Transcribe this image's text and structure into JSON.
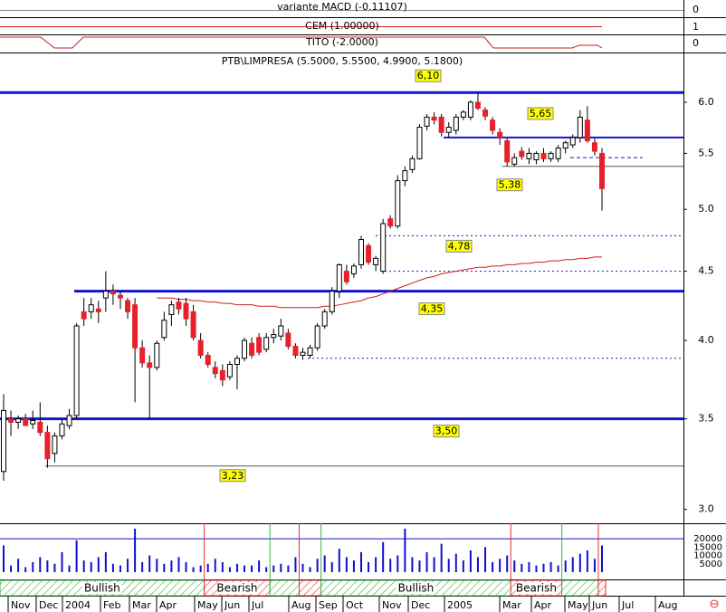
{
  "chart_data": {
    "type": "candlestick",
    "title": "PTB\\LIMPRESA (5.5000, 5.5500, 4.9900, 5.1800)",
    "log_scale": true,
    "ylim": [
      2.93,
      6.49
    ],
    "yticks": [
      {
        "value": 3,
        "label": "3.0"
      },
      3.5,
      {
        "value": 4,
        "label": "4.0"
      },
      4.5,
      {
        "value": 5,
        "label": "5.0"
      },
      5.5,
      {
        "value": 6,
        "label": "6.0"
      }
    ],
    "up_color": "#ffffff",
    "down_color": "#e8202a",
    "ma_color": "#cc1f1f",
    "ohlc": [
      [
        3.2,
        3.65,
        3.15,
        3.55
      ],
      [
        3.5,
        3.55,
        3.4,
        3.48
      ],
      [
        3.48,
        3.52,
        3.44,
        3.5
      ],
      [
        3.5,
        3.53,
        3.46,
        3.46
      ],
      [
        3.47,
        3.55,
        3.44,
        3.49
      ],
      [
        3.48,
        3.6,
        3.4,
        3.42
      ],
      [
        3.42,
        3.46,
        3.22,
        3.27
      ],
      [
        3.3,
        3.42,
        3.25,
        3.4
      ],
      [
        3.4,
        3.5,
        3.38,
        3.47
      ],
      [
        3.46,
        3.56,
        3.44,
        3.52
      ],
      [
        3.52,
        4.12,
        3.5,
        4.1
      ],
      [
        4.2,
        4.3,
        4.1,
        4.15
      ],
      [
        4.2,
        4.3,
        4.15,
        4.25
      ],
      [
        4.22,
        4.28,
        4.12,
        4.2
      ],
      [
        4.3,
        4.5,
        4.2,
        4.35
      ],
      [
        4.35,
        4.4,
        4.25,
        4.33
      ],
      [
        4.32,
        4.35,
        4.22,
        4.3
      ],
      [
        4.28,
        4.3,
        4.15,
        4.2
      ],
      [
        4.25,
        4.3,
        3.6,
        3.95
      ],
      [
        3.95,
        4.0,
        3.82,
        3.85
      ],
      [
        3.85,
        3.9,
        3.5,
        3.82
      ],
      [
        3.82,
        4.0,
        3.8,
        3.98
      ],
      [
        4.02,
        4.2,
        4.0,
        4.14
      ],
      [
        4.18,
        4.28,
        4.1,
        4.25
      ],
      [
        4.27,
        4.3,
        4.18,
        4.22
      ],
      [
        4.26,
        4.3,
        4.1,
        4.15
      ],
      [
        4.2,
        4.25,
        4.0,
        4.02
      ],
      [
        4.0,
        4.05,
        3.88,
        3.9
      ],
      [
        3.9,
        3.92,
        3.82,
        3.84
      ],
      [
        3.82,
        3.86,
        3.75,
        3.78
      ],
      [
        3.8,
        3.84,
        3.7,
        3.74
      ],
      [
        3.76,
        3.86,
        3.74,
        3.84
      ],
      [
        3.84,
        3.9,
        3.68,
        3.88
      ],
      [
        3.88,
        4.02,
        3.86,
        4.0
      ],
      [
        3.98,
        4.02,
        3.88,
        3.9
      ],
      [
        4.02,
        4.05,
        3.9,
        3.92
      ],
      [
        3.94,
        4.05,
        3.92,
        4.02
      ],
      [
        4.02,
        4.08,
        3.98,
        4.04
      ],
      [
        4.03,
        4.15,
        4.0,
        4.1
      ],
      [
        4.05,
        4.08,
        3.94,
        3.96
      ],
      [
        3.96,
        3.98,
        3.88,
        3.9
      ],
      [
        3.9,
        3.95,
        3.87,
        3.92
      ],
      [
        3.9,
        3.97,
        3.88,
        3.95
      ],
      [
        3.95,
        4.12,
        3.93,
        4.1
      ],
      [
        4.1,
        4.22,
        4.08,
        4.2
      ],
      [
        4.2,
        4.38,
        4.18,
        4.35
      ],
      [
        4.35,
        4.56,
        4.3,
        4.55
      ],
      [
        4.5,
        4.55,
        4.4,
        4.42
      ],
      [
        4.48,
        4.56,
        4.45,
        4.54
      ],
      [
        4.55,
        4.78,
        4.52,
        4.75
      ],
      [
        4.7,
        4.72,
        4.55,
        4.57
      ],
      [
        4.55,
        4.62,
        4.5,
        4.6
      ],
      [
        4.5,
        4.92,
        4.48,
        4.88
      ],
      [
        4.92,
        4.95,
        4.84,
        4.86
      ],
      [
        4.86,
        5.3,
        4.84,
        5.25
      ],
      [
        5.25,
        5.38,
        5.2,
        5.34
      ],
      [
        5.35,
        5.48,
        5.32,
        5.45
      ],
      [
        5.45,
        5.78,
        5.44,
        5.75
      ],
      [
        5.76,
        5.88,
        5.72,
        5.85
      ],
      [
        5.85,
        5.9,
        5.78,
        5.82
      ],
      [
        5.85,
        5.88,
        5.66,
        5.7
      ],
      [
        5.7,
        5.8,
        5.65,
        5.75
      ],
      [
        5.72,
        5.88,
        5.68,
        5.85
      ],
      [
        5.85,
        5.92,
        5.82,
        5.9
      ],
      [
        5.85,
        6.02,
        5.82,
        6.0
      ],
      [
        6.0,
        6.1,
        5.92,
        5.94
      ],
      [
        5.92,
        5.95,
        5.82,
        5.86
      ],
      [
        5.82,
        5.85,
        5.68,
        5.72
      ],
      [
        5.7,
        5.74,
        5.58,
        5.65
      ],
      [
        5.62,
        5.64,
        5.38,
        5.42
      ],
      [
        5.4,
        5.5,
        5.38,
        5.46
      ],
      [
        5.52,
        5.56,
        5.44,
        5.47
      ],
      [
        5.45,
        5.55,
        5.4,
        5.5
      ],
      [
        5.44,
        5.52,
        5.4,
        5.5
      ],
      [
        5.5,
        5.55,
        5.42,
        5.45
      ],
      [
        5.45,
        5.52,
        5.42,
        5.5
      ],
      [
        5.45,
        5.58,
        5.42,
        5.55
      ],
      [
        5.55,
        5.62,
        5.5,
        5.6
      ],
      [
        5.58,
        5.68,
        5.55,
        5.65
      ],
      [
        5.65,
        5.92,
        5.6,
        5.85
      ],
      [
        5.82,
        5.96,
        5.6,
        5.62
      ],
      [
        5.6,
        5.64,
        5.48,
        5.52
      ],
      [
        5.5,
        5.55,
        4.99,
        5.18
      ]
    ],
    "ma": [
      null,
      null,
      null,
      null,
      null,
      null,
      null,
      null,
      null,
      null,
      null,
      null,
      null,
      null,
      null,
      null,
      null,
      null,
      null,
      null,
      null,
      4.3,
      4.3,
      4.3,
      4.29,
      4.29,
      4.28,
      4.28,
      4.27,
      4.27,
      4.26,
      4.26,
      4.25,
      4.25,
      4.25,
      4.24,
      4.24,
      4.24,
      4.23,
      4.23,
      4.23,
      4.23,
      4.23,
      4.23,
      4.24,
      4.24,
      4.25,
      4.26,
      4.27,
      4.28,
      4.3,
      4.31,
      4.33,
      4.35,
      4.37,
      4.39,
      4.41,
      4.43,
      4.45,
      4.46,
      4.48,
      4.49,
      4.5,
      4.51,
      4.52,
      4.53,
      4.53,
      4.54,
      4.54,
      4.55,
      4.55,
      4.56,
      4.56,
      4.57,
      4.57,
      4.58,
      4.58,
      4.59,
      4.59,
      4.6,
      4.6,
      4.61,
      4.61
    ],
    "levels": [
      {
        "value": 6.1,
        "label": "6,10",
        "style": "thick"
      },
      {
        "value": 5.65,
        "label": "5,65",
        "style": "medium"
      },
      {
        "value": 5.46,
        "style": "dashed"
      },
      {
        "value": 5.38,
        "label": "5,38",
        "style": "thin"
      },
      {
        "value": 4.78,
        "label": "4,78",
        "style": "dotted"
      },
      {
        "value": 4.5,
        "style": "dotted"
      },
      {
        "value": 4.35,
        "label": "4,35",
        "style": "thick"
      },
      {
        "value": 3.88,
        "style": "dotted"
      },
      {
        "value": 3.5,
        "label": "3,50",
        "style": "thick"
      },
      {
        "value": 3.23,
        "label": "3,23",
        "style": "thin"
      }
    ],
    "volume": {
      "color": "#1010d0",
      "ylim": [
        0,
        26000
      ],
      "yticks": [
        5000,
        10000,
        15000,
        20000
      ],
      "values": [
        16000,
        4000,
        8000,
        3000,
        6000,
        9000,
        7000,
        5000,
        12000,
        4000,
        19000,
        7000,
        6000,
        9000,
        12000,
        5000,
        4000,
        8000,
        26000,
        6000,
        10000,
        8000,
        5000,
        7000,
        9000,
        6000,
        3000,
        4000,
        5000,
        8000,
        6000,
        3000,
        5000,
        4000,
        4000,
        7000,
        3000,
        4000,
        5000,
        4000,
        9000,
        5000,
        3000,
        8000,
        10000,
        6000,
        14000,
        9000,
        7000,
        12000,
        6000,
        9000,
        18000,
        8000,
        10000,
        26000,
        9000,
        7000,
        12000,
        9000,
        17000,
        8000,
        11000,
        7000,
        13000,
        9000,
        15000,
        6000,
        8000,
        10000,
        7000,
        5000,
        6000,
        4000,
        5000,
        6000,
        4000,
        7000,
        9000,
        11000,
        13000,
        8000,
        16000
      ]
    },
    "signals": [
      "Bullish",
      "Bearish",
      null,
      null,
      "Bullish",
      "Bearish",
      null,
      null
    ],
    "month_labels": [
      "Nov",
      "Dec",
      "2004",
      "Feb",
      "Mar",
      "Apr",
      "May",
      "Jun",
      "Jul",
      "Aug",
      "Sep",
      "Oct",
      "Nov",
      "Dec",
      "2005",
      "Mar",
      "Apr",
      "May",
      "Jun",
      "Jul",
      "Aug"
    ],
    "panels": [
      {
        "label": "variante MACD (-0.11107)",
        "tick": 0
      },
      {
        "label": "CEM (1.00000)",
        "tick": 1
      },
      {
        "label": "TITO (-2.0000)",
        "tick": 0
      }
    ]
  }
}
